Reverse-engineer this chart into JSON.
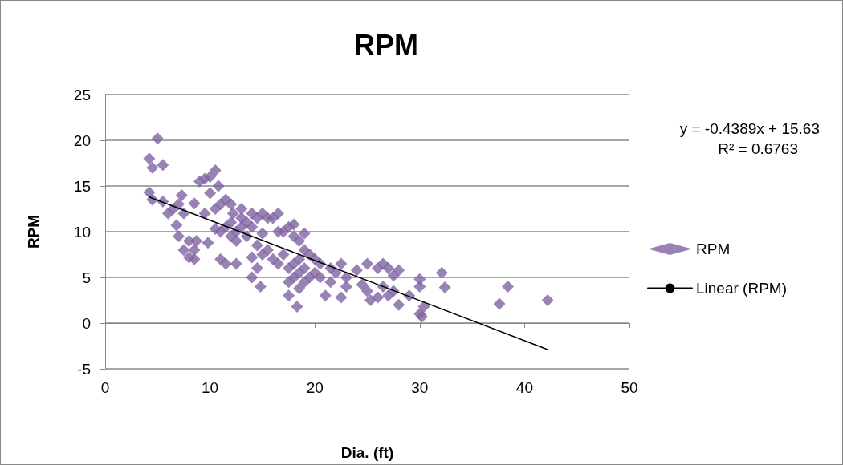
{
  "chart_data": {
    "type": "scatter",
    "title": "RPM",
    "xlabel": "Dia. (ft)",
    "ylabel": "RPM",
    "xlim": [
      0,
      50
    ],
    "xticks": [
      0,
      10,
      20,
      30,
      40,
      50
    ],
    "ylim": [
      -5,
      25
    ],
    "yticks": [
      -5,
      0,
      5,
      10,
      15,
      20,
      25
    ],
    "grid": "y",
    "legend": "right",
    "marker": "diamond",
    "annotations": [
      "y = -0.4389x + 15.63",
      "R² = 0.6763"
    ],
    "series": [
      {
        "name": "RPM",
        "color": "#8064a2",
        "x": [
          4.2,
          4.5,
          4.2,
          4.5,
          5,
          5.5,
          5.5,
          6,
          6.5,
          6.8,
          7,
          7,
          7.3,
          7.5,
          7.5,
          8,
          8,
          8.5,
          8.5,
          8.5,
          8.7,
          9,
          9.5,
          9.5,
          10,
          10,
          9.8,
          10.5,
          10.5,
          10.5,
          10.8,
          11,
          11,
          11,
          11.5,
          11.5,
          11.5,
          12,
          12,
          12,
          12.2,
          12.5,
          12.5,
          12.5,
          13,
          13,
          13,
          13.5,
          13.5,
          14,
          14,
          14,
          14,
          14.5,
          14.5,
          14.5,
          14.8,
          15,
          15,
          15,
          15.5,
          15.5,
          16,
          16,
          16.5,
          16.5,
          16.5,
          17,
          17,
          17.5,
          17.5,
          17.5,
          17.5,
          18,
          18,
          18,
          18,
          18.3,
          18.5,
          18.5,
          18.5,
          18.5,
          19,
          19,
          19,
          19,
          19.5,
          19.5,
          20,
          20,
          20.5,
          20.5,
          21,
          21.5,
          21.5,
          22,
          22.5,
          22.5,
          23,
          23,
          24,
          24.5,
          25,
          25,
          25.3,
          26,
          26,
          26.5,
          26.5,
          27,
          27,
          27.5,
          27.5,
          28,
          28,
          29,
          30,
          30,
          30,
          30.2,
          30.4,
          32.1,
          32.4,
          37.6,
          38.4,
          42.2
        ],
        "values": [
          18,
          17,
          14.3,
          13.5,
          20.2,
          17.3,
          13.3,
          12,
          12.5,
          10.7,
          13,
          9.5,
          14,
          8,
          12,
          9,
          7.2,
          13.1,
          8,
          7,
          9,
          15.5,
          15.8,
          12,
          14.2,
          16,
          8.8,
          16.7,
          12.5,
          10.3,
          15,
          13,
          7,
          10,
          13.5,
          10.5,
          6.5,
          13,
          11,
          9.5,
          12,
          10,
          6.5,
          9,
          11.5,
          12.5,
          10.5,
          11,
          9.5,
          12,
          10.5,
          7.2,
          5,
          11.5,
          8.5,
          6,
          4,
          12,
          9.8,
          7.5,
          11.5,
          8,
          11.5,
          7,
          12,
          10,
          6.5,
          10,
          7.5,
          10.5,
          6,
          4.5,
          3,
          9.5,
          10.8,
          6.5,
          5,
          1.8,
          9,
          7,
          5.5,
          3.8,
          9.8,
          8,
          6,
          4.5,
          7.5,
          5,
          7,
          5.5,
          6.5,
          5,
          3,
          6,
          4.5,
          5.5,
          6.5,
          2.8,
          4,
          5,
          5.8,
          4.2,
          6.5,
          3.5,
          2.5,
          6,
          2.8,
          4,
          6.5,
          3,
          6,
          5.2,
          3.5,
          5.8,
          2,
          3,
          4.8,
          4,
          1,
          0.7,
          1.8,
          5.5,
          3.9,
          2.1,
          4,
          2.5
        ]
      },
      {
        "name": "Linear (RPM)",
        "type": "line",
        "color": "#000000",
        "marker": "none",
        "x": [
          4.2,
          42.2
        ],
        "values": [
          13.79,
          -2.89
        ]
      }
    ]
  }
}
